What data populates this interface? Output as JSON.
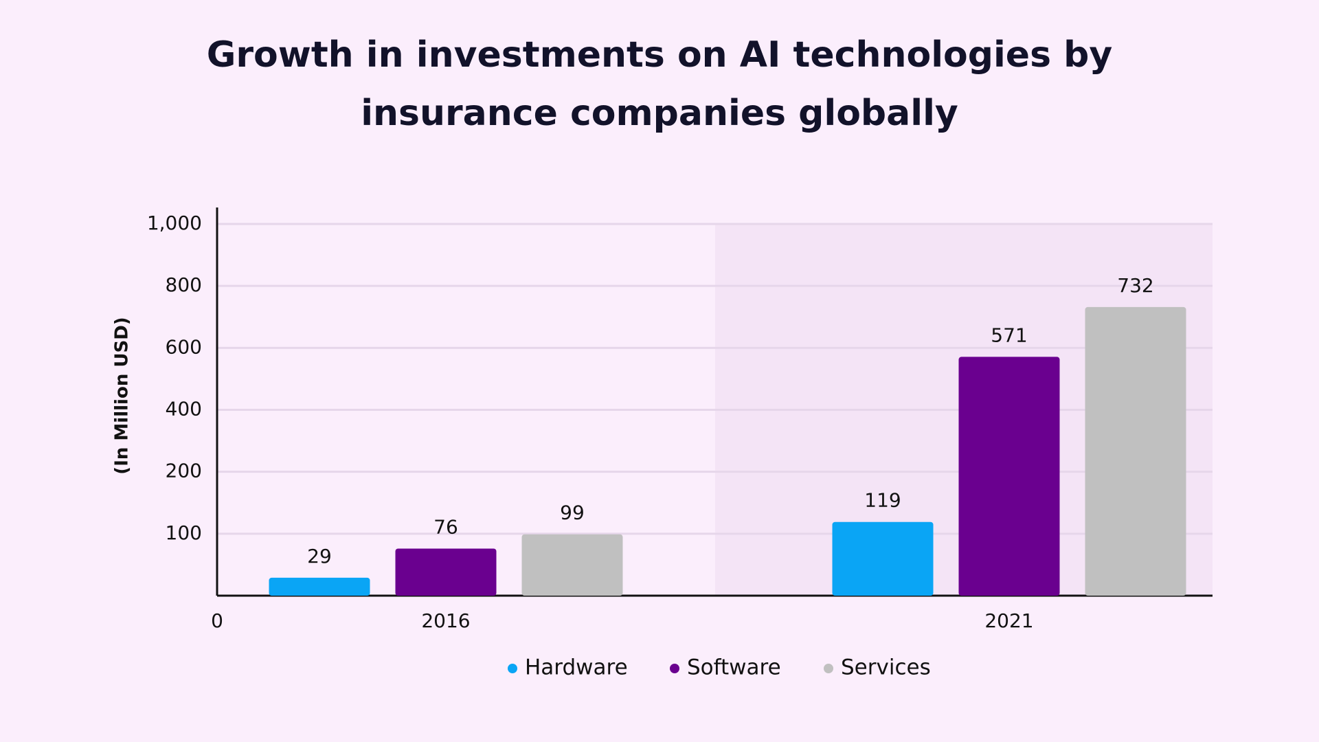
{
  "chart_data": {
    "type": "bar",
    "title": [
      "Growth in investments on AI technologies by",
      "insurance companies globally"
    ],
    "y_label": "(In Million USD)",
    "categories": [
      "2016",
      "2021"
    ],
    "series": [
      {
        "name": "Hardware",
        "color": "#0aa5f5",
        "values": [
          29,
          119
        ]
      },
      {
        "name": "Software",
        "color": "#6a008f",
        "values": [
          76,
          571
        ]
      },
      {
        "name": "Services",
        "color": "#c0c0c0",
        "values": [
          99,
          732
        ]
      }
    ],
    "ylim": [
      0,
      1000
    ],
    "yticks": [
      0,
      100,
      200,
      400,
      600,
      800,
      {
        "value": 1000,
        "label": "1,000"
      }
    ],
    "grid": true,
    "legend": "bottom"
  }
}
